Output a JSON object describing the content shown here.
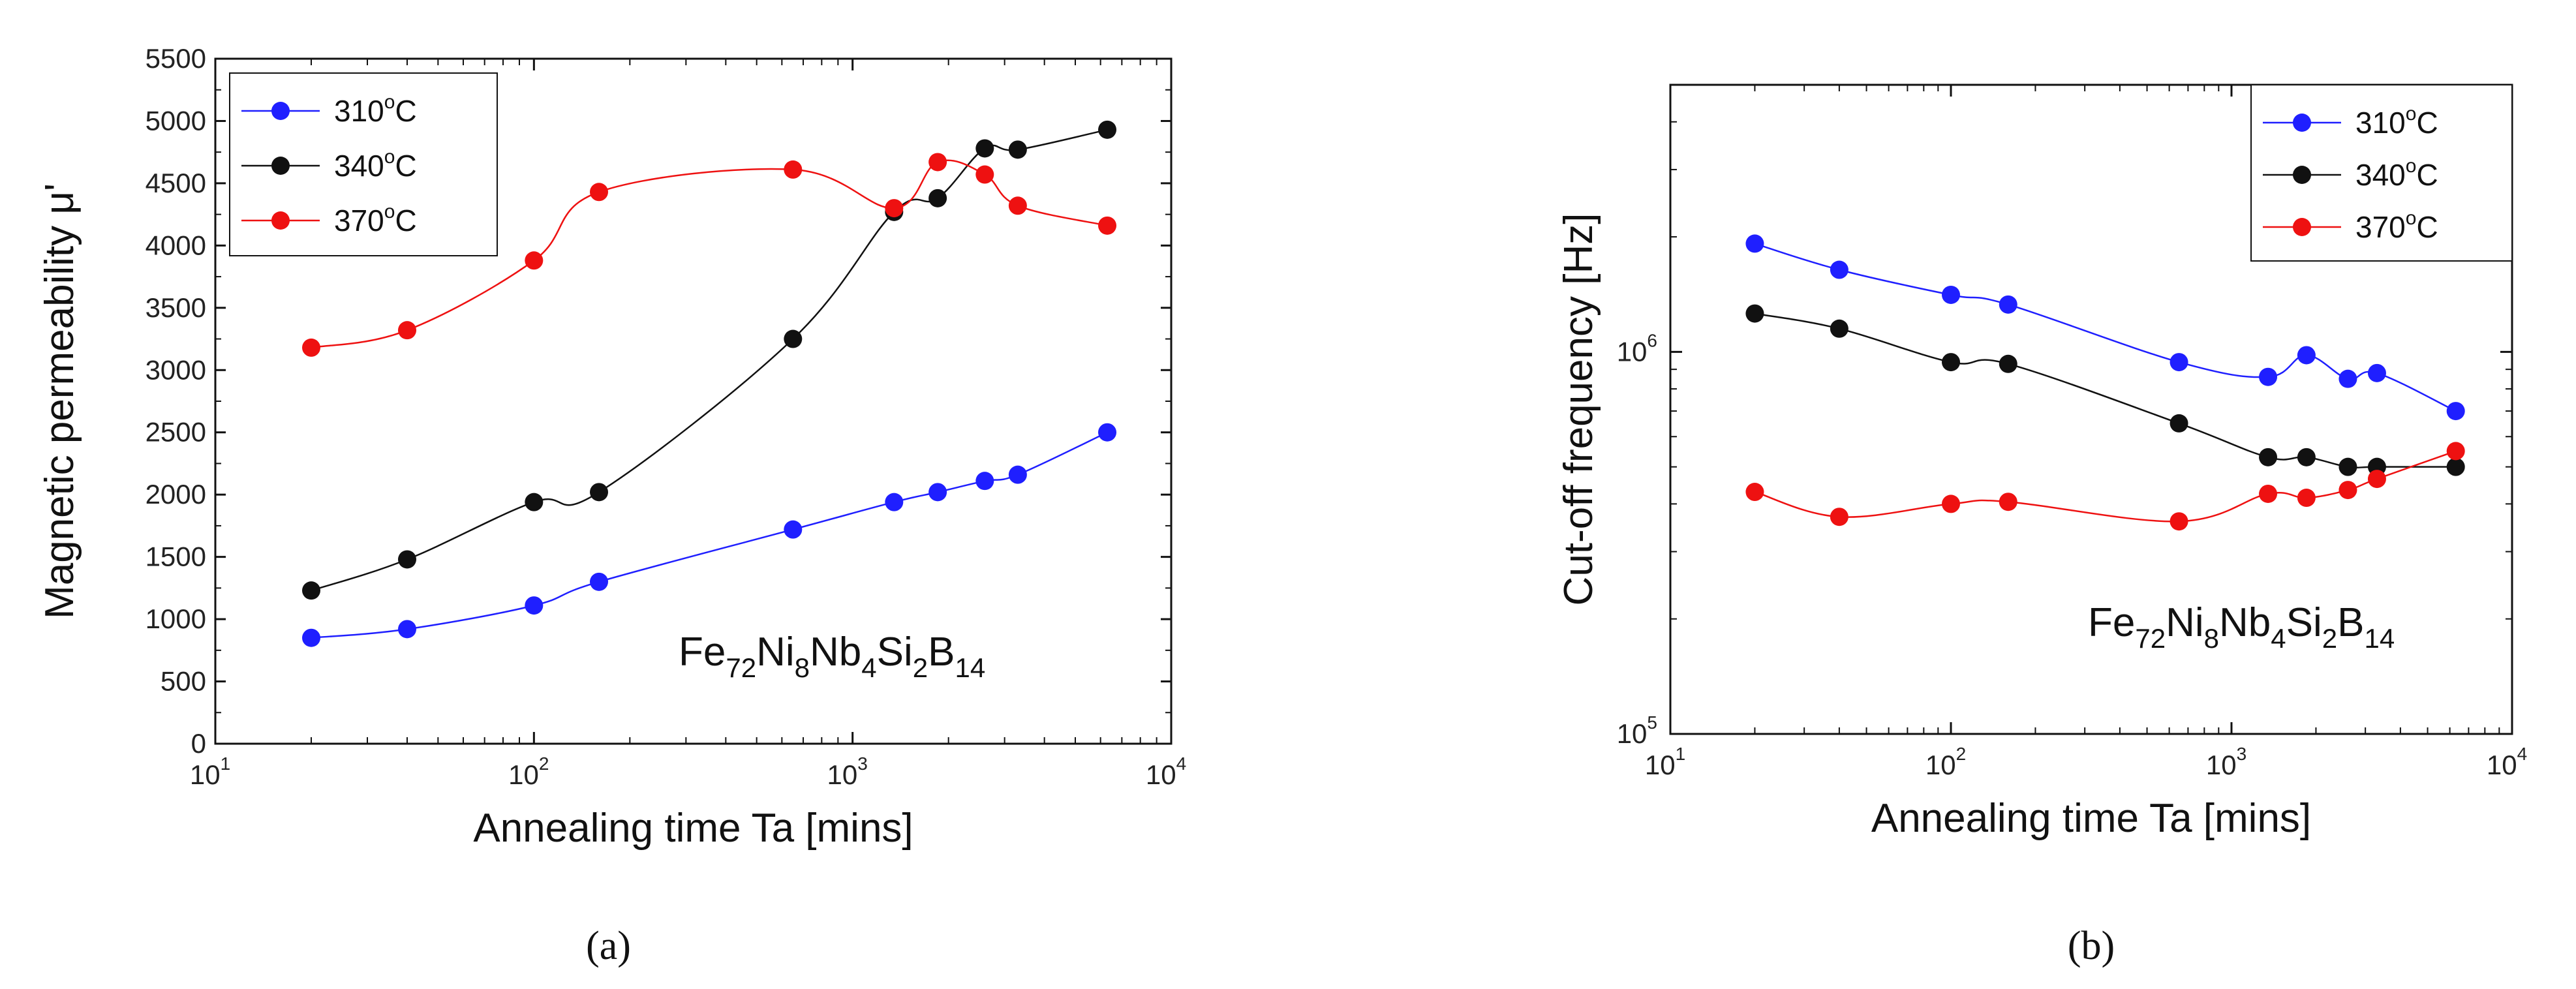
{
  "chart_data": [
    {
      "id": "a",
      "type": "line",
      "caption": "(a)",
      "xlabel": "Annealing time Ta [mins]",
      "ylabel": "Magnetic permeability μ'",
      "xscale": "log",
      "xlim": [
        10,
        10000
      ],
      "ylim": [
        0,
        5500
      ],
      "x_ticks": [
        "1",
        "2",
        "3",
        "4"
      ],
      "y_ticks": [
        0,
        500,
        1000,
        1500,
        2000,
        2500,
        3000,
        3500,
        4000,
        4500,
        5000,
        5500
      ],
      "legend_position": "top-left",
      "annotation": {
        "base": "Fe",
        "parts": [
          [
            "Fe",
            "72"
          ],
          [
            "Ni",
            "8"
          ],
          [
            "Nb",
            "4"
          ],
          [
            "Si",
            "2"
          ],
          [
            "B",
            "14"
          ]
        ]
      },
      "series": [
        {
          "name": "310°C",
          "deg": "o",
          "temp": "310",
          "unit": "C",
          "color": "#1f1fff",
          "x": [
            20,
            40,
            100,
            160,
            650,
            1350,
            1850,
            2600,
            3300,
            6300
          ],
          "values": [
            850,
            920,
            1110,
            1300,
            1720,
            1940,
            2020,
            2110,
            2160,
            2500
          ]
        },
        {
          "name": "340°C",
          "deg": "o",
          "temp": "340",
          "unit": "C",
          "color": "#111111",
          "x": [
            20,
            40,
            100,
            160,
            650,
            1350,
            1850,
            2600,
            3300,
            6300
          ],
          "values": [
            1230,
            1480,
            1940,
            2020,
            3250,
            4270,
            4380,
            4780,
            4770,
            4930
          ]
        },
        {
          "name": "370°C",
          "deg": "o",
          "temp": "370",
          "unit": "C",
          "color": "#ee1111",
          "x": [
            20,
            40,
            100,
            160,
            650,
            1350,
            1850,
            2600,
            3300,
            6300
          ],
          "values": [
            3180,
            3320,
            3880,
            4430,
            4610,
            4300,
            4670,
            4570,
            4320,
            4160
          ]
        }
      ]
    },
    {
      "id": "b",
      "type": "line",
      "caption": "(b)",
      "xlabel": "Annealing time Ta [mins]",
      "ylabel": "Cut-off frequency [Hz]",
      "xscale": "log",
      "yscale": "log",
      "xlim": [
        10,
        10000
      ],
      "ylim": [
        100000,
        5000000
      ],
      "x_ticks": [
        "1",
        "2",
        "3",
        "4"
      ],
      "y_ticks": [
        "5",
        "6"
      ],
      "legend_position": "top-right",
      "annotation": {
        "base": "Fe",
        "parts": [
          [
            "Fe",
            "72"
          ],
          [
            "Ni",
            "8"
          ],
          [
            "Nb",
            "4"
          ],
          [
            "Si",
            "2"
          ],
          [
            "B",
            "14"
          ]
        ]
      },
      "series": [
        {
          "name": "310°C",
          "deg": "o",
          "temp": "310",
          "unit": "C",
          "color": "#1f1fff",
          "x": [
            20,
            40,
            100,
            160,
            650,
            1350,
            1850,
            2600,
            3300,
            6300
          ],
          "values": [
            1920000,
            1640000,
            1410000,
            1330000,
            940000,
            860000,
            980000,
            850000,
            880000,
            700000
          ]
        },
        {
          "name": "340°C",
          "deg": "o",
          "temp": "340",
          "unit": "C",
          "color": "#111111",
          "x": [
            20,
            40,
            100,
            160,
            650,
            1350,
            1850,
            2600,
            3300,
            6300
          ],
          "values": [
            1260000,
            1150000,
            940000,
            930000,
            650000,
            530000,
            530000,
            500000,
            500000,
            500000
          ]
        },
        {
          "name": "370°C",
          "deg": "o",
          "temp": "370",
          "unit": "C",
          "color": "#ee1111",
          "x": [
            20,
            40,
            100,
            160,
            650,
            1350,
            1850,
            2600,
            3300,
            6300
          ],
          "values": [
            430000,
            370000,
            400000,
            405000,
            360000,
            425000,
            415000,
            435000,
            465000,
            550000
          ]
        }
      ]
    }
  ]
}
